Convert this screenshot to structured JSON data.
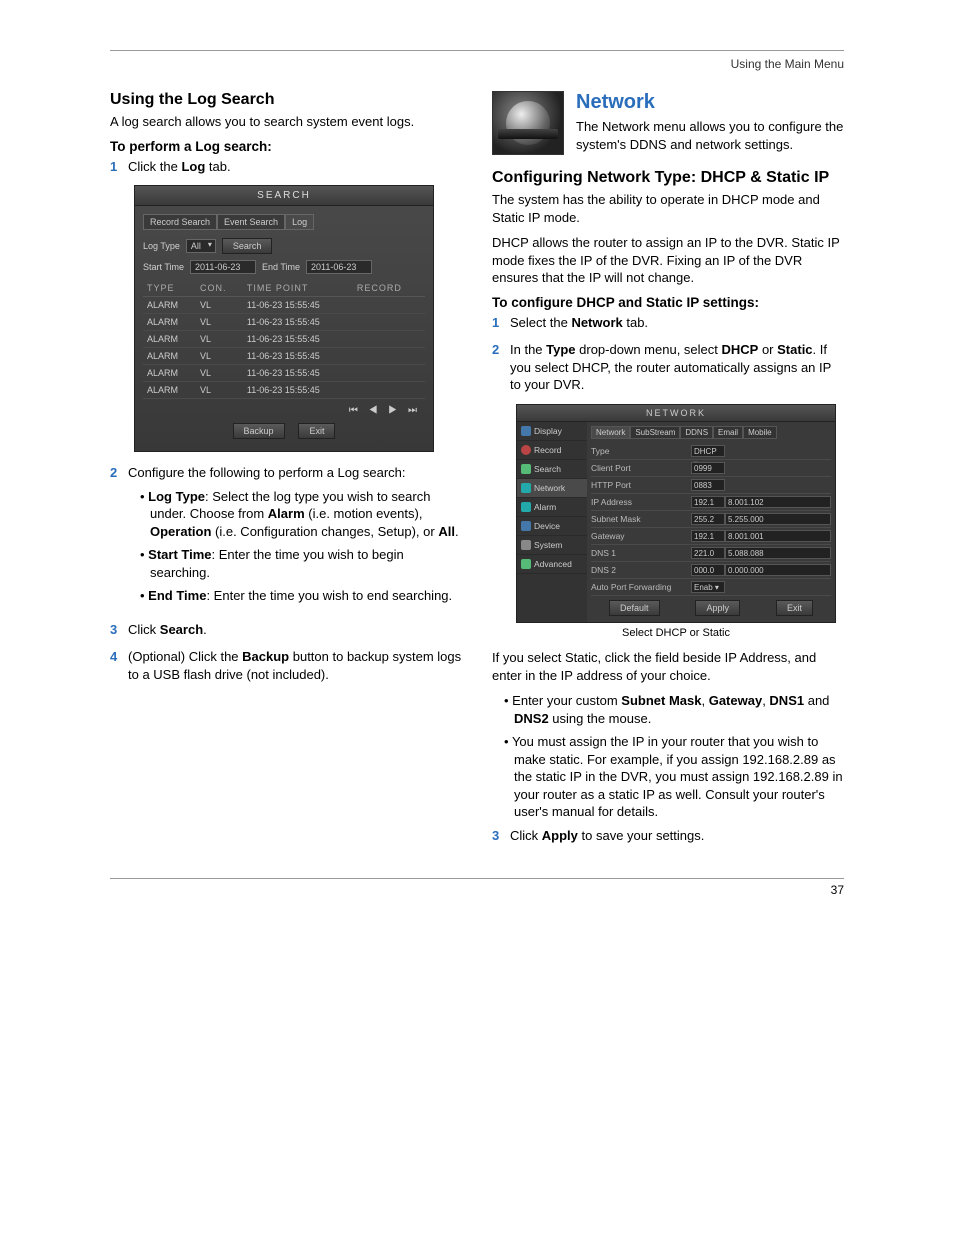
{
  "header": {
    "right": "Using the Main Menu"
  },
  "page_number": "37",
  "left": {
    "h1": "Using the Log Search",
    "intro": "A log search allows you to search system event logs.",
    "sub": "To perform a Log search:",
    "step1_pre": "Click the ",
    "step1_b": "Log",
    "step1_post": " tab.",
    "step2": "Configure the following to perform a Log search:",
    "b_logtype_label": "Log Type",
    "b_logtype_text": ": Select the log type you wish to search under. Choose from ",
    "b_logtype_alarm": "Alarm",
    "b_logtype_text2": " (i.e. motion events), ",
    "b_logtype_op": "Operation",
    "b_logtype_text3": " (i.e. Configuration changes, Setup), or ",
    "b_logtype_all": "All",
    "b_logtype_text4": ".",
    "b_start_label": "Start Time",
    "b_start_text": ": Enter the time you wish to begin searching.",
    "b_end_label": "End Time",
    "b_end_text": ": Enter the time you wish to end searching.",
    "step3_pre": "Click ",
    "step3_b": "Search",
    "step3_post": ".",
    "step4_pre": "(Optional) Click the ",
    "step4_b": "Backup",
    "step4_post": " button to backup system logs to a USB flash drive (not included).",
    "search_shot": {
      "title": "SEARCH",
      "tabs": [
        "Record Search",
        "Event Search",
        "Log"
      ],
      "log_type_label": "Log Type",
      "log_type_value": "All",
      "search_btn": "Search",
      "start_label": "Start Time",
      "start_value": "2011-06-23",
      "end_label": "End Time",
      "end_value": "2011-06-23",
      "cols": [
        "TYPE",
        "CON.",
        "TIME POINT",
        "RECORD"
      ],
      "rows": [
        {
          "t": "ALARM",
          "c": "VL",
          "tp": "11-06-23   15:55:45",
          "r": ""
        },
        {
          "t": "ALARM",
          "c": "VL",
          "tp": "11-06-23   15:55:45",
          "r": ""
        },
        {
          "t": "ALARM",
          "c": "VL",
          "tp": "11-06-23   15:55:45",
          "r": ""
        },
        {
          "t": "ALARM",
          "c": "VL",
          "tp": "11-06-23   15:55:45",
          "r": ""
        },
        {
          "t": "ALARM",
          "c": "VL",
          "tp": "11-06-23   15:55:45",
          "r": ""
        },
        {
          "t": "ALARM",
          "c": "VL",
          "tp": "11-06-23   15:55:45",
          "r": ""
        }
      ],
      "pager": "⏮  ◀  ▶  ⏭",
      "backup_btn": "Backup",
      "exit_btn": "Exit"
    }
  },
  "right": {
    "h1": "Network",
    "intro": "The Network menu allows you to configure the system's DDNS and network settings.",
    "h2": "Configuring Network Type: DHCP & Static IP",
    "p1": "The system has the ability to operate in DHCP mode and Static IP mode.",
    "p2": "DHCP allows the router to assign an IP to the DVR. Static IP mode fixes the IP of the DVR. Fixing an IP of the DVR ensures that the IP will not change.",
    "sub": "To configure DHCP and Static IP settings:",
    "step1_pre": "Select the ",
    "step1_b": "Network",
    "step1_post": " tab.",
    "step2_pre": "In the ",
    "step2_b1": "Type",
    "step2_mid": " drop-down menu, select ",
    "step2_b2": "DHCP",
    "step2_or": " or ",
    "step2_b3": "Static",
    "step2_post": ". If you select DHCP, the router automatically assigns an IP to your DVR.",
    "caption": "Select DHCP or Static",
    "p3": "If you select Static, click the field beside IP Address, and enter in the IP address of your choice.",
    "b1_pre": "Enter your custom ",
    "b1_b1": "Subnet Mask",
    "b1_c1": ", ",
    "b1_b2": "Gateway",
    "b1_c2": ", ",
    "b1_b3": "DNS1",
    "b1_c3": " and ",
    "b1_b4": "DNS2",
    "b1_post": " using the mouse.",
    "b2": "You must assign the IP in your router that you wish to make static. For example, if you assign 192.168.2.89 as the static IP in the DVR, you must assign 192.168.2.89 in your router as a static IP as well. Consult your router's user's manual for details.",
    "step3_pre": "Click ",
    "step3_b": "Apply",
    "step3_post": " to save your settings.",
    "net_shot": {
      "title": "NETWORK",
      "side": [
        "Display",
        "Record",
        "Search",
        "Network",
        "Alarm",
        "Device",
        "System",
        "Advanced"
      ],
      "tabs": [
        "Network",
        "SubStream",
        "DDNS",
        "Email",
        "Mobile"
      ],
      "rows": [
        {
          "l": "Type",
          "a": "DHCP",
          "b": ""
        },
        {
          "l": "Client Port",
          "a": "0999",
          "b": ""
        },
        {
          "l": "HTTP Port",
          "a": "0883",
          "b": ""
        },
        {
          "l": "IP Address",
          "a": "192.1",
          "b": "8.001.102"
        },
        {
          "l": "Subnet Mask",
          "a": "255.2",
          "b": "5.255.000"
        },
        {
          "l": "Gateway",
          "a": "192.1",
          "b": "8.001.001"
        },
        {
          "l": "DNS 1",
          "a": "221.0",
          "b": "5.088.088"
        },
        {
          "l": "DNS 2",
          "a": "000.0",
          "b": "0.000.000"
        },
        {
          "l": "Auto Port Forwarding",
          "a": "Enab",
          "b": ""
        }
      ],
      "btns": [
        "Default",
        "Apply",
        "Exit"
      ]
    }
  }
}
